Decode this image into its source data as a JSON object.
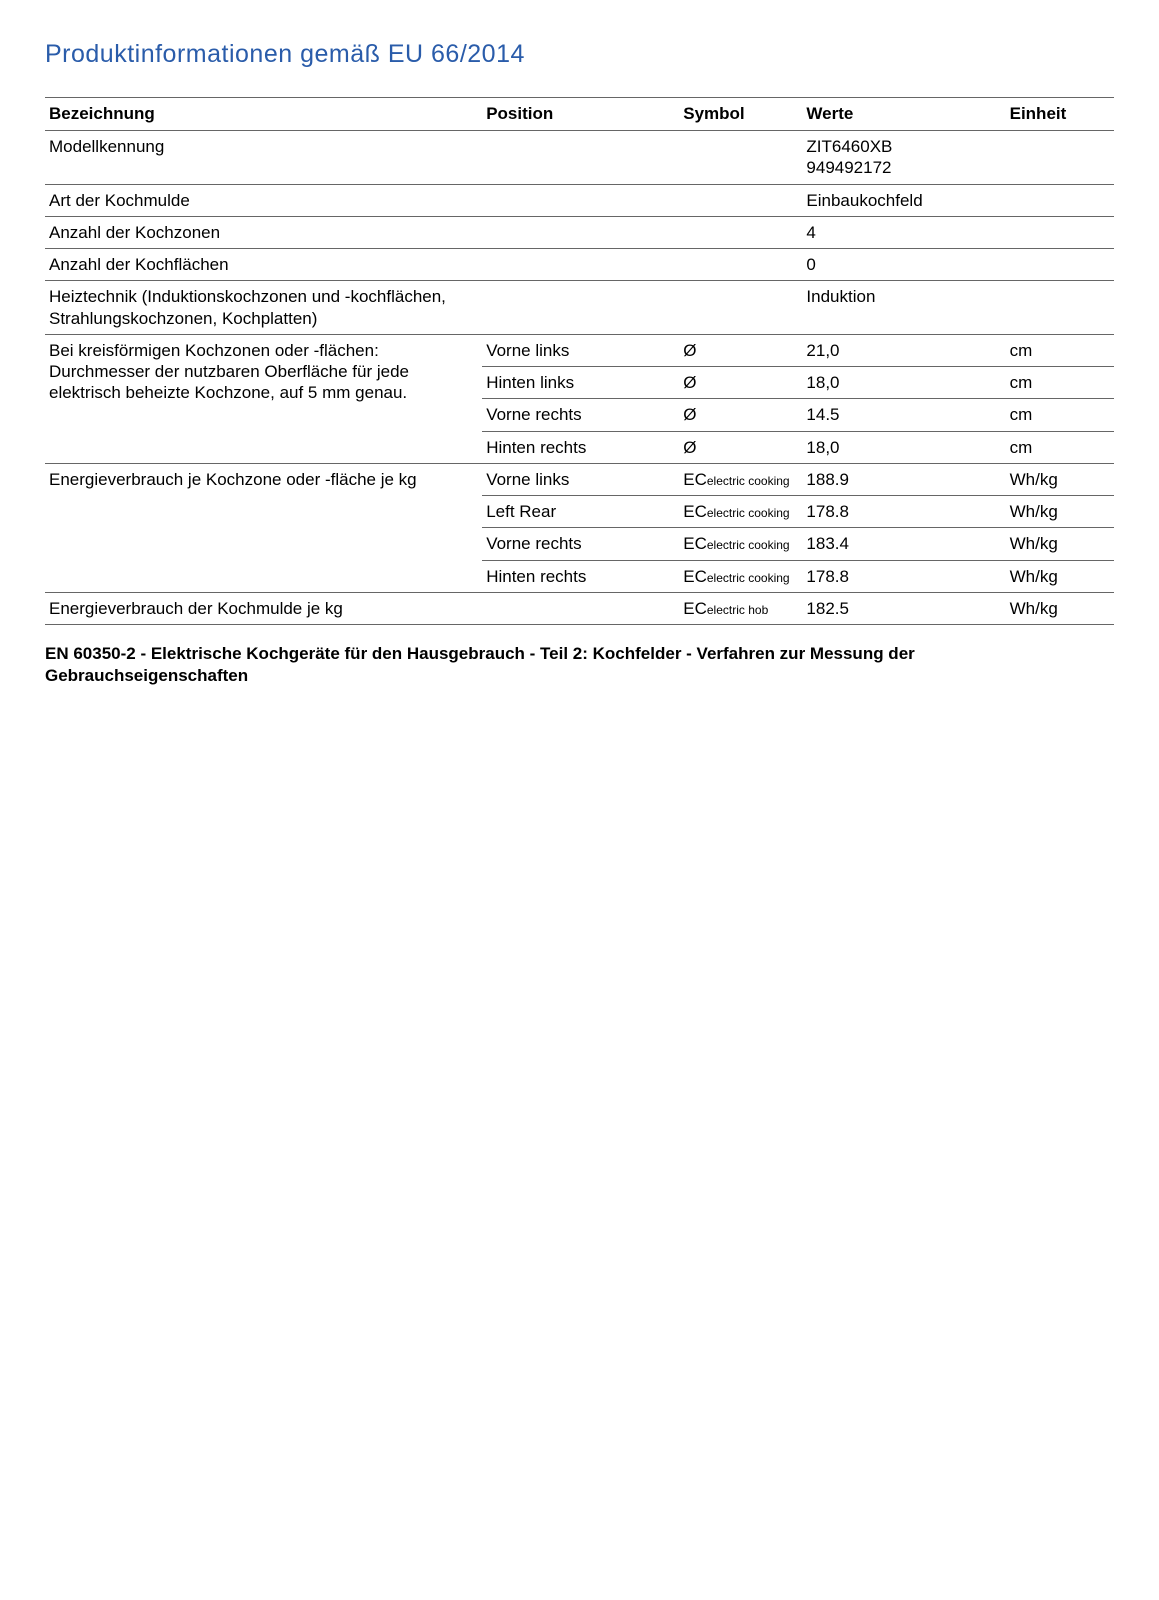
{
  "title": "Produktinformationen gemäß EU 66/2014",
  "headers": {
    "bezeichnung": "Bezeichnung",
    "position": "Position",
    "symbol": "Symbol",
    "werte": "Werte",
    "einheit": "Einheit"
  },
  "rows": {
    "r1": {
      "bez": "Modellkennung",
      "wert1": "ZIT6460XB",
      "wert2": "949492172"
    },
    "r2": {
      "bez": "Art der Kochmulde",
      "wert": "Einbaukochfeld"
    },
    "r3": {
      "bez": "Anzahl der Kochzonen",
      "wert": "4"
    },
    "r4": {
      "bez": "Anzahl der Kochflächen",
      "wert": "0"
    },
    "r5": {
      "bez": "Heiztechnik (Induktionskochzonen und -kochflächen, Strahlungskochzonen, Kochplatten)",
      "wert": "Induktion"
    },
    "diam": {
      "bez": "Bei kreisförmigen Kochzonen oder -flächen: Durchmesser der nutzbaren Oberfläche für jede elektrisch beheizte Kochzone, auf 5 mm genau.",
      "sub": [
        {
          "pos": "Vorne links",
          "sym": "Ø",
          "wert": "21,0",
          "ein": "cm"
        },
        {
          "pos": "Hinten links",
          "sym": "Ø",
          "wert": "18,0",
          "ein": "cm"
        },
        {
          "pos": "Vorne rechts",
          "sym": "Ø",
          "wert": "14.5",
          "ein": "cm"
        },
        {
          "pos": "Hinten rechts",
          "sym": "Ø",
          "wert": "18,0",
          "ein": "cm"
        }
      ]
    },
    "energy_zone": {
      "bez": "Energieverbrauch je Kochzone oder -fläche je kg",
      "sub": [
        {
          "pos": "Vorne links",
          "symMain": "EC",
          "symSub": "electric cooking",
          "wert": "188.9",
          "ein": "Wh/kg"
        },
        {
          "pos": "Left Rear",
          "symMain": "EC",
          "symSub": "electric cooking",
          "wert": "178.8",
          "ein": "Wh/kg"
        },
        {
          "pos": "Vorne rechts",
          "symMain": "EC",
          "symSub": "electric cooking",
          "wert": "183.4",
          "ein": "Wh/kg"
        },
        {
          "pos": "Hinten rechts",
          "symMain": "EC",
          "symSub": "electric cooking",
          "wert": "178.8",
          "ein": "Wh/kg"
        }
      ]
    },
    "energy_hob": {
      "bez": "Energieverbrauch der Kochmulde je kg",
      "symMain": "EC",
      "symSub": "electric hob",
      "wert": "182.5",
      "ein": "Wh/kg"
    }
  },
  "footnote": "EN 60350-2 - Elektrische Kochgeräte für den Hausgebrauch - Teil 2: Kochfelder - Verfahren zur Messung der Gebrauchseigenschaften"
}
